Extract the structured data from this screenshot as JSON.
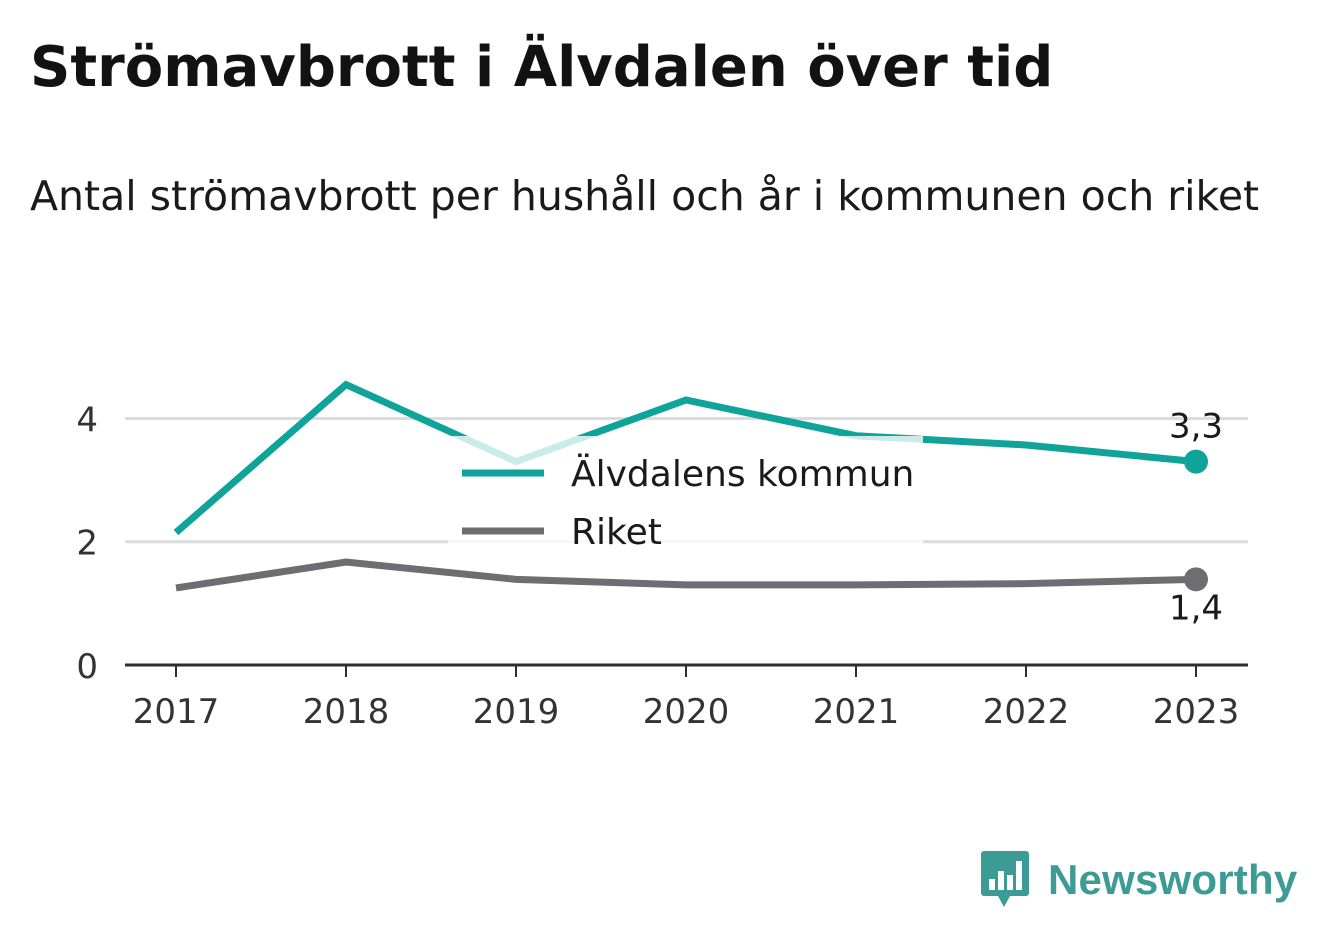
{
  "header": {
    "title": "Strömavbrott i Älvdalen över tid",
    "subtitle": "Antal strömavbrott per hushåll och år i kommunen och riket"
  },
  "brand": {
    "name": "Newsworthy",
    "icon": "newsworthy-bar-chart-icon",
    "color": "#3d9b95"
  },
  "chart_data": {
    "type": "line",
    "x": [
      "2017",
      "2018",
      "2019",
      "2020",
      "2021",
      "2022",
      "2023"
    ],
    "ylim": [
      0,
      4.9
    ],
    "yticks": [
      0,
      2,
      4
    ],
    "grid": true,
    "legend": "center",
    "series": [
      {
        "name": "Älvdalens kommun",
        "color": "#0fa39a",
        "values": [
          2.15,
          4.55,
          3.3,
          4.3,
          3.72,
          3.57,
          3.3
        ],
        "end_label": "3,3"
      },
      {
        "name": "Riket",
        "color": "#6e6e72",
        "values": [
          1.25,
          1.67,
          1.39,
          1.3,
          1.3,
          1.32,
          1.39
        ],
        "end_label": "1,4"
      }
    ]
  }
}
